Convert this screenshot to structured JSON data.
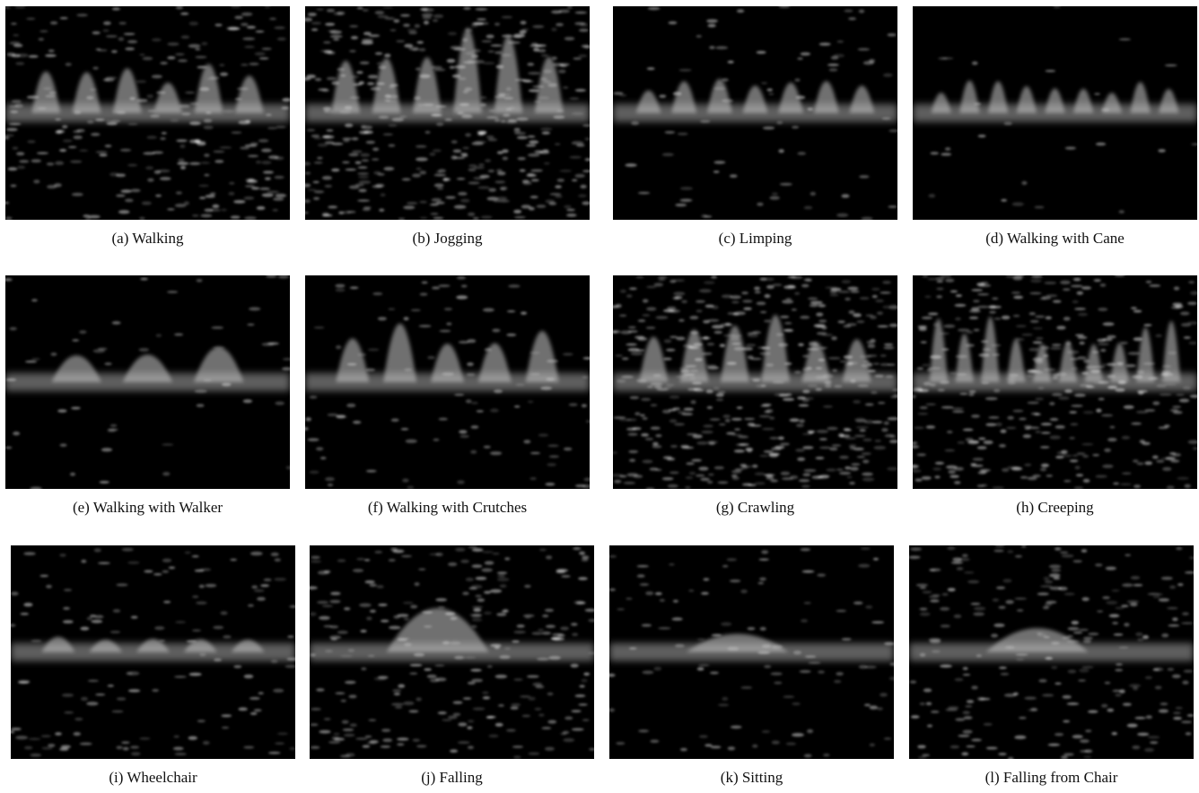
{
  "figure": {
    "subfigures": [
      {
        "caption": "(a) Walking"
      },
      {
        "caption": "(b) Jogging"
      },
      {
        "caption": "(c) Limping"
      },
      {
        "caption": "(d) Walking with Cane"
      },
      {
        "caption": "(e) Walking with Walker"
      },
      {
        "caption": "(f) Walking with Crutches"
      },
      {
        "caption": "(g) Crawling"
      },
      {
        "caption": "(h) Creeping"
      },
      {
        "caption": "(i) Wheelchair"
      },
      {
        "caption": "(j) Falling"
      },
      {
        "caption": "(k) Sitting"
      },
      {
        "caption": "(l) Falling from Chair"
      }
    ]
  }
}
